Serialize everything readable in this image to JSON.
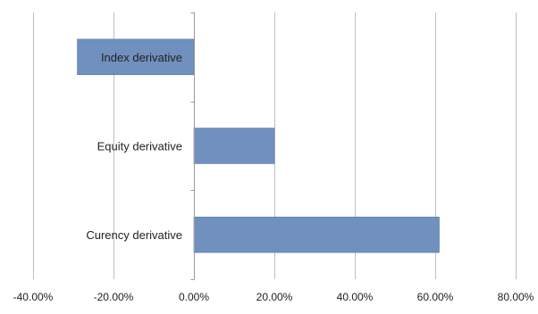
{
  "chart_data": {
    "type": "bar",
    "orientation": "horizontal",
    "categories": [
      "Index derivative",
      "Equity derivative",
      "Curency derivative"
    ],
    "values": [
      -0.29,
      0.2,
      0.61
    ],
    "xlim": [
      -0.4,
      0.8
    ],
    "xticks": [
      -0.4,
      -0.2,
      0.0,
      0.2,
      0.4,
      0.6,
      0.8
    ],
    "xtick_labels": [
      "-40.00%",
      "-20.00%",
      "0.00%",
      "20.00%",
      "40.00%",
      "60.00%",
      "80.00%"
    ],
    "grid": "vertical",
    "legend": "none",
    "colors": {
      "bar": "#7090bd",
      "bar_edge": "#5b7aa8",
      "grid": "#bfbfbf",
      "axis": "#9a9a9a"
    },
    "title": "",
    "xlabel": "",
    "ylabel": ""
  }
}
